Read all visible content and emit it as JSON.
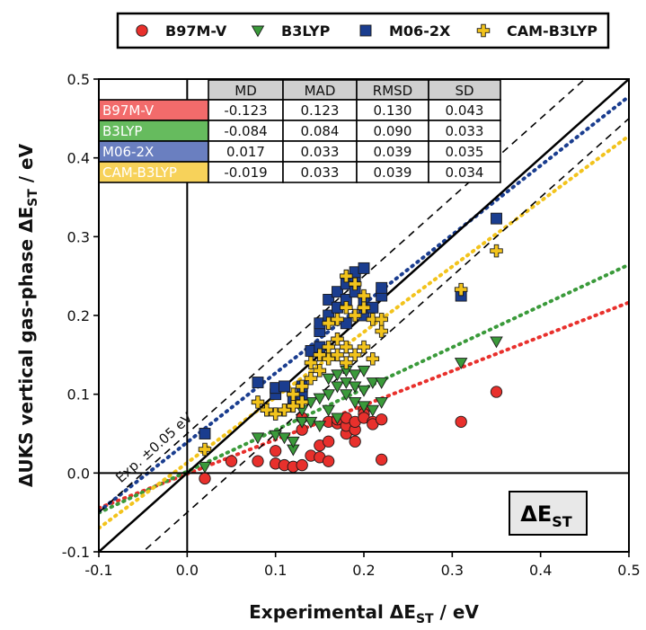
{
  "chart_data": {
    "type": "scatter",
    "xlabel_main": "Experimental ΔE",
    "xlabel_sub": "ST",
    "xlabel_unit": " / eV",
    "ylabel_main": "ΔUKS vertical gas-phase ΔE",
    "ylabel_sub": "ST",
    "ylabel_unit": " / eV",
    "xlim": [
      -0.1,
      0.5
    ],
    "ylim": [
      -0.1,
      0.5
    ],
    "xticks": [
      -0.1,
      0.0,
      0.1,
      0.2,
      0.3,
      0.4,
      0.5
    ],
    "yticks": [
      -0.1,
      0.0,
      0.1,
      0.2,
      0.3,
      0.4,
      0.5
    ],
    "xtick_labels": [
      "-0.1",
      "0.0",
      "0.1",
      "0.2",
      "0.3",
      "0.4",
      "0.5"
    ],
    "ytick_labels": [
      "-0.1",
      "0.0",
      "0.1",
      "0.2",
      "0.3",
      "0.4",
      "0.5"
    ],
    "grid": false,
    "legend_position": "top",
    "band_label": "Exp. ±0.05 eV",
    "band_halfwidth": 0.05,
    "panel_label_main": "ΔE",
    "panel_label_sub": "ST",
    "table": {
      "headers": [
        "",
        "MD",
        "MAD",
        "RMSD",
        "SD"
      ],
      "rows": [
        {
          "name": "B97M-V",
          "color": "#f26b6b",
          "values": [
            "-0.123",
            "0.123",
            "0.130",
            "0.043"
          ]
        },
        {
          "name": "B3LYP",
          "color": "#66bb5e",
          "values": [
            "-0.084",
            "0.084",
            "0.090",
            "0.033"
          ]
        },
        {
          "name": "M06-2X",
          "color": "#6a7fc0",
          "values": [
            "0.017",
            "0.033",
            "0.039",
            "0.035"
          ]
        },
        {
          "name": "CAM-B3LYP",
          "color": "#f7d25a",
          "values": [
            "-0.019",
            "0.033",
            "0.039",
            "0.034"
          ]
        }
      ]
    },
    "series": [
      {
        "name": "B97M-V",
        "marker": "circle",
        "color": "#e8302c",
        "fit": [
          0.435,
          -0.001
        ],
        "points": [
          [
            0.02,
            -0.007
          ],
          [
            0.05,
            0.015
          ],
          [
            0.08,
            0.015
          ],
          [
            0.1,
            0.012
          ],
          [
            0.1,
            0.028
          ],
          [
            0.11,
            0.01
          ],
          [
            0.12,
            0.008
          ],
          [
            0.13,
            0.01
          ],
          [
            0.14,
            0.022
          ],
          [
            0.15,
            0.02
          ],
          [
            0.15,
            0.035
          ],
          [
            0.16,
            0.015
          ],
          [
            0.16,
            0.04
          ],
          [
            0.13,
            0.055
          ],
          [
            0.13,
            0.07
          ],
          [
            0.16,
            0.065
          ],
          [
            0.17,
            0.063
          ],
          [
            0.17,
            0.068
          ],
          [
            0.18,
            0.05
          ],
          [
            0.18,
            0.06
          ],
          [
            0.18,
            0.07
          ],
          [
            0.19,
            0.055
          ],
          [
            0.19,
            0.065
          ],
          [
            0.19,
            0.04
          ],
          [
            0.2,
            0.08
          ],
          [
            0.2,
            0.075
          ],
          [
            0.2,
            0.07
          ],
          [
            0.21,
            0.065
          ],
          [
            0.21,
            0.062
          ],
          [
            0.22,
            0.068
          ],
          [
            0.22,
            0.017
          ],
          [
            0.31,
            0.065
          ],
          [
            0.35,
            0.103
          ]
        ]
      },
      {
        "name": "B3LYP",
        "marker": "triangle-down",
        "color": "#3a9a3a",
        "fit": [
          0.525,
          0.002
        ],
        "points": [
          [
            0.02,
            0.008
          ],
          [
            0.08,
            0.045
          ],
          [
            0.1,
            0.048
          ],
          [
            0.11,
            0.045
          ],
          [
            0.12,
            0.03
          ],
          [
            0.12,
            0.04
          ],
          [
            0.13,
            0.065
          ],
          [
            0.13,
            0.08
          ],
          [
            0.14,
            0.065
          ],
          [
            0.14,
            0.09
          ],
          [
            0.15,
            0.06
          ],
          [
            0.15,
            0.095
          ],
          [
            0.16,
            0.08
          ],
          [
            0.16,
            0.1
          ],
          [
            0.16,
            0.12
          ],
          [
            0.17,
            0.07
          ],
          [
            0.17,
            0.11
          ],
          [
            0.17,
            0.125
          ],
          [
            0.18,
            0.1
          ],
          [
            0.18,
            0.115
          ],
          [
            0.18,
            0.13
          ],
          [
            0.19,
            0.09
          ],
          [
            0.19,
            0.11
          ],
          [
            0.19,
            0.125
          ],
          [
            0.2,
            0.085
          ],
          [
            0.2,
            0.105
          ],
          [
            0.2,
            0.13
          ],
          [
            0.21,
            0.08
          ],
          [
            0.21,
            0.115
          ],
          [
            0.22,
            0.09
          ],
          [
            0.22,
            0.115
          ],
          [
            0.31,
            0.14
          ],
          [
            0.35,
            0.167
          ]
        ]
      },
      {
        "name": "M06-2X",
        "marker": "square",
        "color": "#1a3d8f",
        "fit": [
          0.878,
          0.039
        ],
        "points": [
          [
            0.02,
            0.05
          ],
          [
            0.08,
            0.115
          ],
          [
            0.1,
            0.1
          ],
          [
            0.1,
            0.108
          ],
          [
            0.11,
            0.11
          ],
          [
            0.12,
            0.095
          ],
          [
            0.13,
            0.1
          ],
          [
            0.13,
            0.11
          ],
          [
            0.14,
            0.155
          ],
          [
            0.15,
            0.16
          ],
          [
            0.15,
            0.18
          ],
          [
            0.15,
            0.19
          ],
          [
            0.16,
            0.2
          ],
          [
            0.16,
            0.22
          ],
          [
            0.17,
            0.21
          ],
          [
            0.17,
            0.23
          ],
          [
            0.18,
            0.19
          ],
          [
            0.18,
            0.22
          ],
          [
            0.18,
            0.24
          ],
          [
            0.19,
            0.23
          ],
          [
            0.19,
            0.25
          ],
          [
            0.19,
            0.255
          ],
          [
            0.2,
            0.2
          ],
          [
            0.2,
            0.22
          ],
          [
            0.2,
            0.26
          ],
          [
            0.21,
            0.21
          ],
          [
            0.22,
            0.225
          ],
          [
            0.22,
            0.235
          ],
          [
            0.31,
            0.225
          ],
          [
            0.35,
            0.323
          ]
        ]
      },
      {
        "name": "CAM-B3LYP",
        "marker": "plus",
        "color": "#f2c31c",
        "fit": [
          0.83,
          0.013
        ],
        "points": [
          [
            0.02,
            0.03
          ],
          [
            0.08,
            0.09
          ],
          [
            0.09,
            0.08
          ],
          [
            0.1,
            0.075
          ],
          [
            0.11,
            0.08
          ],
          [
            0.12,
            0.085
          ],
          [
            0.12,
            0.1
          ],
          [
            0.13,
            0.09
          ],
          [
            0.13,
            0.11
          ],
          [
            0.14,
            0.12
          ],
          [
            0.14,
            0.14
          ],
          [
            0.15,
            0.13
          ],
          [
            0.15,
            0.15
          ],
          [
            0.16,
            0.145
          ],
          [
            0.16,
            0.16
          ],
          [
            0.16,
            0.19
          ],
          [
            0.17,
            0.15
          ],
          [
            0.17,
            0.17
          ],
          [
            0.17,
            0.195
          ],
          [
            0.18,
            0.14
          ],
          [
            0.18,
            0.16
          ],
          [
            0.18,
            0.21
          ],
          [
            0.18,
            0.25
          ],
          [
            0.19,
            0.15
          ],
          [
            0.19,
            0.2
          ],
          [
            0.19,
            0.24
          ],
          [
            0.2,
            0.16
          ],
          [
            0.2,
            0.21
          ],
          [
            0.2,
            0.225
          ],
          [
            0.21,
            0.145
          ],
          [
            0.21,
            0.195
          ],
          [
            0.22,
            0.18
          ],
          [
            0.22,
            0.195
          ],
          [
            0.31,
            0.233
          ],
          [
            0.35,
            0.282
          ]
        ]
      }
    ]
  }
}
